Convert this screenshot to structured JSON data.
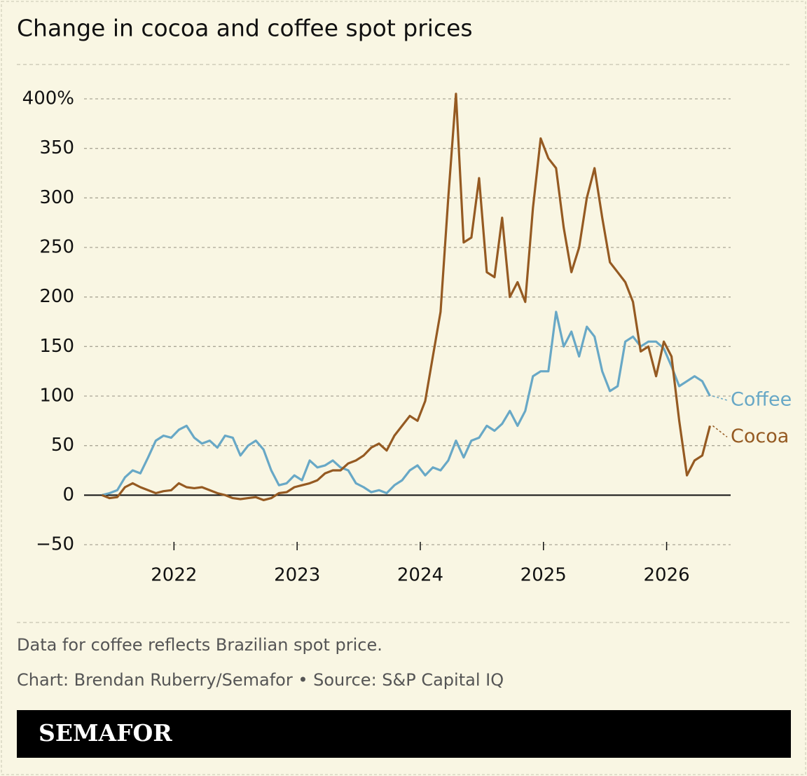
{
  "chart_data": {
    "type": "line",
    "title": "Change in cocoa and coffee spot prices",
    "note": "Data for coffee reflects Brazilian spot price.",
    "credit": "Chart: Brendan Ruberry/Semafor • Source: S&P Capital IQ",
    "brand": "SEMAFOR",
    "x": [
      2021.4148,
      2021.4773,
      2021.5398,
      2021.6023,
      2021.6648,
      2021.7273,
      2021.7898,
      2021.8523,
      2021.9148,
      2021.9773,
      2022.0398,
      2022.1023,
      2022.1648,
      2022.2273,
      2022.2898,
      2022.3523,
      2022.4148,
      2022.4773,
      2022.5398,
      2022.6023,
      2022.6648,
      2022.7273,
      2022.7898,
      2022.8523,
      2022.9148,
      2022.9773,
      2023.0398,
      2023.1023,
      2023.1648,
      2023.2273,
      2023.2898,
      2023.3523,
      2023.4148,
      2023.4773,
      2023.5398,
      2023.6023,
      2023.6648,
      2023.7273,
      2023.7898,
      2023.8523,
      2023.9148,
      2023.9773,
      2024.0398,
      2024.1023,
      2024.1648,
      2024.2273,
      2024.2898,
      2024.3523,
      2024.4148,
      2024.4773,
      2024.5398,
      2024.6023,
      2024.6648,
      2024.7273,
      2024.7898,
      2024.8523,
      2024.9148,
      2024.9773,
      2025.0398,
      2025.1023,
      2025.1648,
      2025.2273,
      2025.2898,
      2025.3523,
      2025.4148,
      2025.4773,
      2025.5398,
      2025.6023,
      2025.6648,
      2025.7273,
      2025.7898,
      2025.8523,
      2025.9148,
      2025.9773,
      2026.0398,
      2026.1023,
      2026.1648,
      2026.2273,
      2026.2898,
      2026.3523
    ],
    "series": [
      {
        "name": "Coffee",
        "color": "#68a8c6",
        "values": [
          0,
          2,
          5,
          18,
          25,
          22,
          38,
          55,
          60,
          58,
          66,
          70,
          58,
          52,
          55,
          48,
          60,
          58,
          40,
          50,
          55,
          46,
          25,
          10,
          12,
          20,
          15,
          35,
          28,
          30,
          35,
          28,
          25,
          12,
          8,
          3,
          5,
          2,
          10,
          15,
          25,
          30,
          20,
          28,
          25,
          35,
          55,
          38,
          55,
          58,
          70,
          65,
          72,
          85,
          70,
          85,
          120,
          125,
          125,
          185,
          150,
          165,
          140,
          170,
          160,
          125,
          105,
          110,
          155,
          160,
          150,
          155,
          155,
          148,
          130,
          110,
          115,
          120,
          115,
          100
        ]
      },
      {
        "name": "Cocoa",
        "color": "#955a22",
        "values": [
          0,
          -3,
          -2,
          8,
          12,
          8,
          5,
          2,
          4,
          5,
          12,
          8,
          7,
          8,
          5,
          2,
          0,
          -3,
          -4,
          -3,
          -2,
          -5,
          -3,
          2,
          3,
          8,
          10,
          12,
          15,
          22,
          25,
          25,
          32,
          35,
          40,
          48,
          52,
          45,
          60,
          70,
          80,
          75,
          95,
          140,
          185,
          300,
          405,
          255,
          260,
          320,
          225,
          220,
          280,
          200,
          215,
          195,
          290,
          360,
          340,
          330,
          270,
          225,
          250,
          300,
          330,
          280,
          235,
          225,
          215,
          195,
          145,
          150,
          120,
          155,
          140,
          75,
          20,
          35,
          40,
          70
        ]
      }
    ],
    "xlim": [
      2021.27,
      2026.52
    ],
    "xticks": [
      2022,
      2023,
      2024,
      2025,
      2026
    ],
    "ylim": [
      -50,
      400
    ],
    "yticks": [
      {
        "value": -50,
        "label": "−50"
      },
      0,
      50,
      100,
      150,
      200,
      250,
      300,
      350,
      {
        "value": 400,
        "label": "400%"
      }
    ],
    "grid": true
  }
}
